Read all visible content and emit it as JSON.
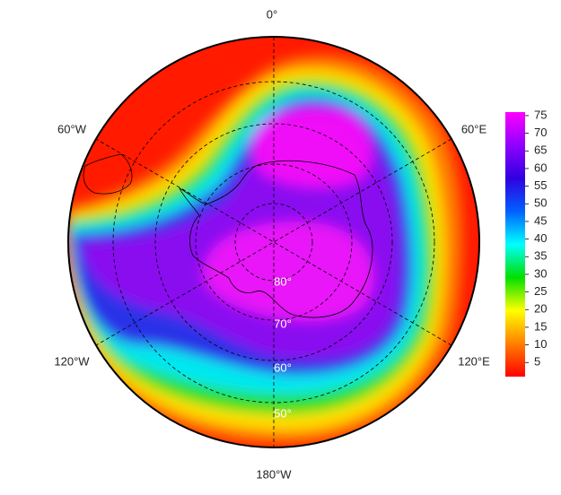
{
  "map": {
    "meridian_labels": [
      "0°",
      "60°E",
      "120°E",
      "180°W",
      "120°W",
      "60°W"
    ],
    "latitude_labels": [
      "80°",
      "70°",
      "60°",
      "50°"
    ],
    "colorbar": {
      "ylim": [
        1,
        76
      ],
      "yticks": [
        5,
        10,
        15,
        20,
        25,
        30,
        35,
        40,
        45,
        50,
        55,
        60,
        65,
        70,
        75
      ],
      "colors": [
        "#ff0000",
        "#ff8000",
        "#ffff00",
        "#00e000",
        "#00ffff",
        "#0060ff",
        "#3000e0",
        "#9000ff",
        "#ff00ff"
      ]
    }
  }
}
